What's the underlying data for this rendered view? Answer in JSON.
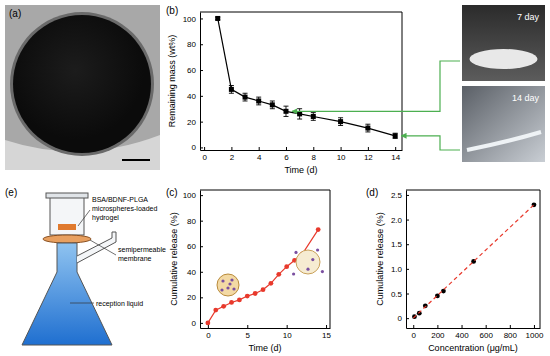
{
  "chart_data": [
    {
      "type": "image",
      "title": "(a)"
    },
    {
      "type": "line",
      "title": "(b)",
      "x_label": "Time (d)",
      "y_label": "Remaining mass (wt%)",
      "x": [
        1,
        2,
        3,
        4,
        5,
        6,
        7,
        8,
        10,
        12,
        14
      ],
      "series": [
        {
          "values": [
            100,
            45,
            39,
            36,
            33,
            28,
            26,
            24,
            20,
            15,
            9
          ],
          "errors": [
            1,
            3,
            3,
            3,
            3,
            4,
            4,
            3,
            3,
            3,
            2
          ],
          "color": "#000000",
          "marker": "square"
        }
      ],
      "xlim": [
        -0.3,
        14.5
      ],
      "xticks": [
        0,
        2,
        4,
        6,
        8,
        10,
        12,
        14
      ],
      "ylim": [
        -2,
        105
      ],
      "yticks": [
        0,
        20,
        40,
        60,
        80,
        100
      ],
      "annotations": [
        "7 day",
        "14 day"
      ]
    },
    {
      "type": "line",
      "title": "(c)",
      "x_label": "Time (d)",
      "y_label": "Cumulative release (%)",
      "x": [
        0,
        1,
        2,
        3,
        4,
        5,
        6,
        7,
        8,
        9,
        10,
        11,
        12,
        14
      ],
      "series": [
        {
          "values": [
            0,
            10,
            13,
            16,
            18,
            21,
            23,
            26,
            31,
            38,
            44,
            49,
            54,
            73
          ],
          "color": "#e8392c",
          "marker": "circle"
        }
      ],
      "xlim": [
        -1,
        15.5
      ],
      "xticks": [
        0,
        5,
        10,
        15
      ],
      "ylim": [
        -4,
        104
      ],
      "yticks": [
        0,
        20,
        40,
        60,
        80,
        100
      ]
    },
    {
      "type": "scatter",
      "title": "(d)",
      "x_label": "Concentration (μg/mL)",
      "y_label": "Cumulative release (%)",
      "series": [
        {
          "type": "scatter",
          "x": [
            10,
            50,
            100,
            200,
            250,
            500,
            1000
          ],
          "values": [
            0.03,
            0.1,
            0.25,
            0.45,
            0.55,
            1.15,
            2.3
          ],
          "color": "#000000",
          "marker": "circle"
        },
        {
          "type": "line",
          "x": [
            0,
            1000
          ],
          "values": [
            0,
            2.3
          ],
          "color": "#e8392c",
          "line_style": "dashed"
        }
      ],
      "xlim": [
        -60,
        1050
      ],
      "xticks": [
        0,
        200,
        400,
        600,
        800,
        1000
      ],
      "ylim": [
        -0.2,
        2.6
      ],
      "yticks": [
        0,
        0.5,
        {
          "value": 1,
          "label": "1.0"
        },
        1.5,
        {
          "value": 2,
          "label": "2.0"
        },
        2.5
      ]
    },
    {
      "type": "diagram",
      "title": "(e)",
      "annotations": [
        "BSA/BDNF-PLGA",
        "microspheres-loaded",
        "hydrogel",
        "semipermeable",
        "membrane",
        "reception liquid"
      ]
    }
  ]
}
